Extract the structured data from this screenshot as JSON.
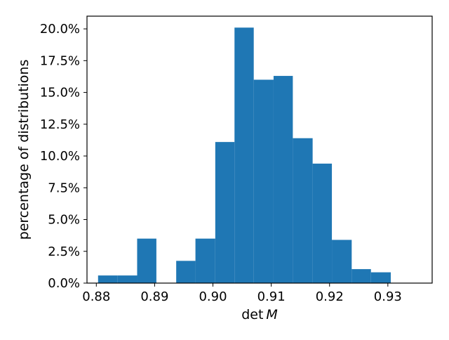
{
  "chart_data": {
    "type": "bar",
    "title": "",
    "xlabel": "det",
    "xlabel_var": "M",
    "ylabel": "percentage of distributions",
    "color": "#1f77b4",
    "grid": false,
    "legend": "none",
    "xlim": [
      0.8784,
      0.9376
    ],
    "ylim": [
      0.0,
      21.0
    ],
    "x_ticks": [
      0.88,
      0.89,
      0.9,
      0.91,
      0.92,
      0.93
    ],
    "x_tick_labels": [
      "0.88",
      "0.89",
      "0.90",
      "0.91",
      "0.92",
      "0.93"
    ],
    "y_ticks": [
      0,
      2.5,
      5,
      7.5,
      10,
      12.5,
      15,
      17.5,
      20
    ],
    "y_tick_labels": [
      "0.0%",
      "2.5%",
      "5.0%",
      "7.5%",
      "10.0%",
      "12.5%",
      "15.0%",
      "17.5%",
      "20.0%"
    ],
    "bin_edges": [
      0.8803,
      0.8836,
      0.887,
      0.8903,
      0.8937,
      0.897,
      0.9004,
      0.9037,
      0.907,
      0.9104,
      0.9137,
      0.9171,
      0.9204,
      0.9238,
      0.9271,
      0.9305,
      0.9338
    ],
    "values": [
      0.6,
      0.6,
      3.5,
      0.0,
      1.75,
      3.5,
      11.1,
      20.1,
      16.0,
      16.3,
      11.4,
      9.4,
      3.4,
      1.1,
      0.85,
      0.0
    ],
    "bins_note_last_edge": 0.9372
  }
}
